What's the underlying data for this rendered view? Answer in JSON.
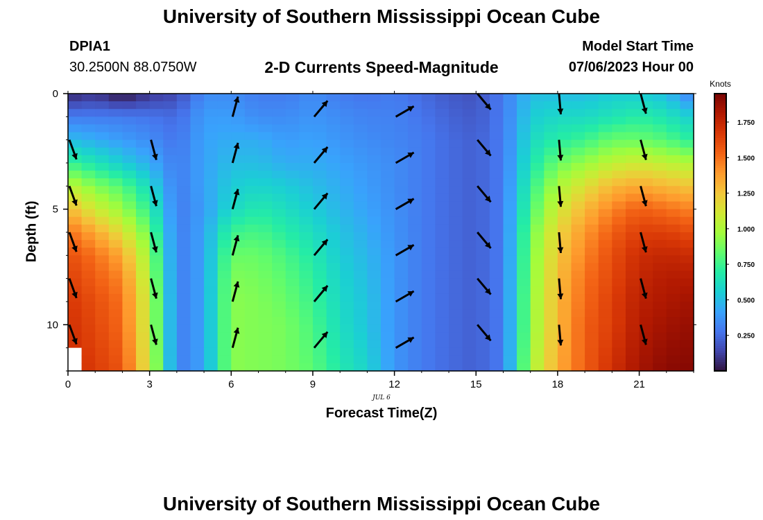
{
  "header": {
    "title": "University of Southern Mississippi Ocean Cube",
    "station": "DPIA1",
    "coords": "30.2500N  88.0750W",
    "subtitle": "2-D Currents Speed-Magnitude",
    "model_start_label": "Model Start Time",
    "model_start_value": "07/06/2023 Hour 00"
  },
  "footer": {
    "title": "University of Southern Mississippi Ocean Cube"
  },
  "chart_data": {
    "type": "heatmap",
    "title": "2-D Currents Speed-Magnitude",
    "xlabel": "Forecast Time(Z)",
    "ylabel": "Depth (ft)",
    "date_label": "JUL 6",
    "x_ticks": [
      0,
      3,
      6,
      9,
      12,
      15,
      18,
      21
    ],
    "y_ticks": [
      0,
      5,
      10
    ],
    "xlim": [
      0,
      23
    ],
    "ylim": [
      0,
      12
    ],
    "y_inverted": true,
    "colorbar": {
      "unit": "Knots",
      "ticks": [
        "1.750",
        "1.500",
        "1.250",
        "1.000",
        "0.750",
        "0.500",
        "0.250"
      ],
      "tick_values": [
        1.75,
        1.5,
        1.25,
        1.0,
        0.75,
        0.5,
        0.25
      ],
      "range": [
        0,
        1.95
      ],
      "colormap": [
        "#30123b",
        "#4145ab",
        "#4675ed",
        "#39a2fc",
        "#1bcfd4",
        "#24eca6",
        "#61fc6c",
        "#a4fc3b",
        "#d1e834",
        "#f3c63a",
        "#fe9b2d",
        "#f36315",
        "#d93806",
        "#b11901",
        "#7a0403"
      ]
    },
    "x_hours": [
      0,
      0.5,
      1,
      1.5,
      2,
      2.5,
      3,
      3.5,
      4,
      4.5,
      5,
      5.5,
      6,
      6.5,
      7,
      7.5,
      8,
      8.5,
      9,
      9.5,
      10,
      10.5,
      11,
      11.5,
      12,
      12.5,
      13,
      13.5,
      14,
      14.5,
      15,
      15.5,
      16,
      16.5,
      17,
      17.5,
      18,
      18.5,
      19,
      19.5,
      20,
      20.5,
      21,
      21.5,
      22,
      22.5,
      23
    ],
    "depths_ft": [
      0,
      1,
      2,
      3,
      4,
      5,
      6,
      7,
      8,
      9,
      10,
      11,
      12
    ],
    "profiles": [
      {
        "hour": 0,
        "speeds": [
          0.05,
          0.3,
          0.5,
          0.75,
          1.05,
          1.3,
          1.5,
          1.6,
          1.65,
          1.68,
          1.7,
          1.72
        ]
      },
      {
        "hour": 1,
        "speeds": [
          0.1,
          0.3,
          0.45,
          0.65,
          0.9,
          1.1,
          1.35,
          1.5,
          1.55,
          1.6,
          1.62,
          1.64
        ]
      },
      {
        "hour": 2,
        "speeds": [
          0.0,
          0.3,
          0.4,
          0.55,
          0.8,
          0.95,
          1.15,
          1.35,
          1.45,
          1.5,
          1.52,
          1.55
        ]
      },
      {
        "hour": 3,
        "speeds": [
          0.1,
          0.28,
          0.35,
          0.45,
          0.6,
          0.72,
          0.85,
          0.95,
          1.0,
          1.05,
          1.05,
          1.08
        ]
      },
      {
        "hour": 4,
        "speeds": [
          0.15,
          0.25,
          0.28,
          0.3,
          0.3,
          0.3,
          0.3,
          0.3,
          0.3,
          0.3,
          0.3,
          0.3
        ]
      },
      {
        "hour": 5,
        "speeds": [
          0.35,
          0.4,
          0.42,
          0.42,
          0.42,
          0.4,
          0.42,
          0.42,
          0.42,
          0.42,
          0.42,
          0.42
        ]
      },
      {
        "hour": 6,
        "speeds": [
          0.35,
          0.4,
          0.45,
          0.5,
          0.55,
          0.6,
          0.75,
          0.85,
          0.9,
          0.92,
          0.92,
          0.92
        ]
      },
      {
        "hour": 7,
        "speeds": [
          0.3,
          0.35,
          0.45,
          0.5,
          0.58,
          0.68,
          0.78,
          0.85,
          0.88,
          0.9,
          0.9,
          0.9
        ]
      },
      {
        "hour": 8,
        "speeds": [
          0.3,
          0.35,
          0.4,
          0.45,
          0.55,
          0.62,
          0.7,
          0.78,
          0.82,
          0.85,
          0.88,
          0.88
        ]
      },
      {
        "hour": 9,
        "speeds": [
          0.35,
          0.38,
          0.42,
          0.45,
          0.5,
          0.55,
          0.62,
          0.68,
          0.72,
          0.75,
          0.78,
          0.8
        ]
      },
      {
        "hour": 10,
        "speeds": [
          0.3,
          0.35,
          0.38,
          0.42,
          0.45,
          0.48,
          0.52,
          0.55,
          0.58,
          0.6,
          0.62,
          0.65
        ]
      },
      {
        "hour": 11,
        "speeds": [
          0.28,
          0.32,
          0.35,
          0.38,
          0.4,
          0.42,
          0.45,
          0.48,
          0.5,
          0.52,
          0.52,
          0.55
        ]
      },
      {
        "hour": 12,
        "speeds": [
          0.3,
          0.32,
          0.33,
          0.35,
          0.35,
          0.36,
          0.37,
          0.38,
          0.38,
          0.38,
          0.38,
          0.38
        ]
      },
      {
        "hour": 13,
        "speeds": [
          0.25,
          0.28,
          0.3,
          0.3,
          0.3,
          0.3,
          0.3,
          0.3,
          0.3,
          0.3,
          0.3,
          0.3
        ]
      },
      {
        "hour": 14,
        "speeds": [
          0.2,
          0.23,
          0.25,
          0.25,
          0.25,
          0.25,
          0.25,
          0.25,
          0.25,
          0.25,
          0.25,
          0.25
        ]
      },
      {
        "hour": 15,
        "speeds": [
          0.18,
          0.2,
          0.22,
          0.22,
          0.22,
          0.22,
          0.22,
          0.22,
          0.22,
          0.22,
          0.22,
          0.22
        ]
      },
      {
        "hour": 16,
        "speeds": [
          0.3,
          0.3,
          0.3,
          0.3,
          0.3,
          0.3,
          0.3,
          0.3,
          0.3,
          0.3,
          0.3,
          0.3
        ]
      },
      {
        "hour": 17,
        "speeds": [
          0.5,
          0.55,
          0.6,
          0.65,
          0.72,
          0.78,
          0.85,
          0.88,
          0.9,
          0.92,
          0.92,
          0.95
        ]
      },
      {
        "hour": 18,
        "speeds": [
          0.5,
          0.6,
          0.7,
          0.85,
          1.0,
          1.1,
          1.2,
          1.25,
          1.28,
          1.3,
          1.3,
          1.32
        ]
      },
      {
        "hour": 19,
        "speeds": [
          0.5,
          0.6,
          0.75,
          0.95,
          1.15,
          1.3,
          1.4,
          1.45,
          1.5,
          1.52,
          1.55,
          1.55
        ]
      },
      {
        "hour": 20,
        "speeds": [
          0.55,
          0.65,
          0.85,
          1.05,
          1.3,
          1.45,
          1.55,
          1.6,
          1.62,
          1.65,
          1.65,
          1.68
        ]
      },
      {
        "hour": 21,
        "speeds": [
          0.55,
          0.7,
          0.85,
          1.1,
          1.35,
          1.55,
          1.65,
          1.72,
          1.75,
          1.78,
          1.8,
          1.82
        ]
      },
      {
        "hour": 22,
        "speeds": [
          0.5,
          0.65,
          0.8,
          1.05,
          1.3,
          1.5,
          1.65,
          1.75,
          1.8,
          1.82,
          1.85,
          1.88
        ]
      },
      {
        "hour": 23,
        "speeds": [
          0.3,
          0.55,
          0.7,
          1.0,
          1.25,
          1.45,
          1.6,
          1.72,
          1.8,
          1.85,
          1.88,
          1.9
        ]
      }
    ],
    "missing_cells": [
      {
        "hour": 0,
        "depth_ft": 11.5
      }
    ],
    "vectors": [
      {
        "hour": 0,
        "depths_ft": [
          2,
          4,
          6,
          8,
          10
        ],
        "direction_deg": 160
      },
      {
        "hour": 3,
        "depths_ft": [
          2,
          4,
          6,
          8,
          10
        ],
        "direction_deg": 165
      },
      {
        "hour": 6,
        "depths_ft": [
          1,
          3,
          5,
          7,
          9,
          11
        ],
        "direction_deg": 15
      },
      {
        "hour": 9,
        "depths_ft": [
          1,
          3,
          5,
          7,
          9,
          11
        ],
        "direction_deg": 40
      },
      {
        "hour": 12,
        "depths_ft": [
          1,
          3,
          5,
          7,
          9,
          11
        ],
        "direction_deg": 60
      },
      {
        "hour": 15,
        "depths_ft": [
          0,
          2,
          4,
          6,
          8,
          10
        ],
        "direction_deg": 140
      },
      {
        "hour": 18,
        "depths_ft": [
          0,
          2,
          4,
          6,
          8,
          10
        ],
        "direction_deg": 175
      },
      {
        "hour": 21,
        "depths_ft": [
          0,
          2,
          4,
          6,
          8,
          10
        ],
        "direction_deg": 165
      }
    ]
  }
}
